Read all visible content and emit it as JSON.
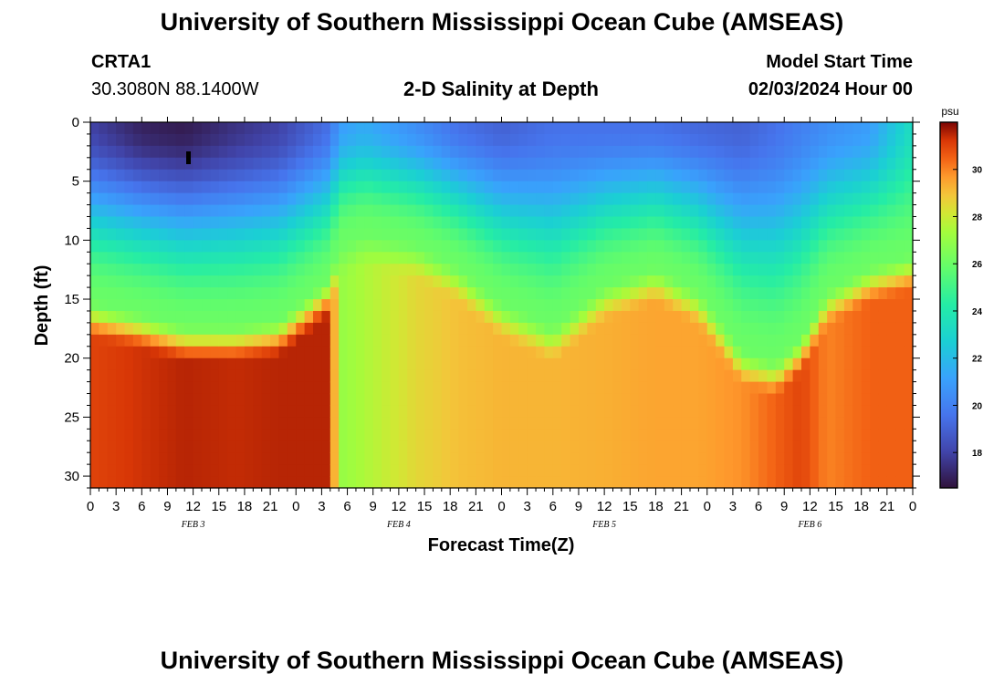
{
  "titles": {
    "top": "University of Southern Mississippi Ocean Cube (AMSEAS)",
    "bottom": "University of Southern Mississippi Ocean Cube (AMSEAS)"
  },
  "station": {
    "id": "CRTA1",
    "coords": "30.3080N  88.1400W"
  },
  "model": {
    "label": "Model Start Time",
    "value": "02/03/2024 Hour 00"
  },
  "chart_data": {
    "type": "heatmap",
    "title": "2-D Salinity at Depth",
    "xlabel": "Forecast Time(Z)",
    "ylabel": "Depth (ft)",
    "xlim": [
      0,
      96
    ],
    "ylim": [
      0,
      31
    ],
    "y_ticks": [
      0,
      5,
      10,
      15,
      20,
      25,
      30
    ],
    "x_tick_labels": [
      "0",
      "3",
      "6",
      "9",
      "12",
      "15",
      "18",
      "21",
      "0",
      "3",
      "6",
      "9",
      "12",
      "15",
      "18",
      "21",
      "0",
      "3",
      "6",
      "9",
      "12",
      "15",
      "18",
      "21",
      "0",
      "3",
      "6",
      "9",
      "12",
      "15",
      "18",
      "21",
      "0"
    ],
    "date_labels": [
      {
        "label": "FEB 3",
        "hour": 12
      },
      {
        "label": "FEB 4",
        "hour": 36
      },
      {
        "label": "FEB 5",
        "hour": 60
      },
      {
        "label": "FEB 6",
        "hour": 84
      }
    ],
    "colorbar": {
      "unit": "psu",
      "min": 16.5,
      "max": 32,
      "ticks": [
        18,
        20,
        22,
        24,
        26,
        28,
        30
      ]
    },
    "profiles": {
      "hours": [
        0,
        6,
        11,
        17,
        22,
        28,
        29,
        32,
        38,
        43,
        48,
        54,
        60,
        66,
        71,
        76,
        80,
        83,
        86,
        91,
        96
      ],
      "halocline_depth_ft": [
        15,
        16,
        17,
        17,
        16.5,
        13,
        10,
        9,
        10,
        12,
        15,
        17,
        13.5,
        12,
        14,
        19,
        20,
        18,
        14,
        12,
        11
      ],
      "surface_salinity_psu": [
        18,
        17,
        16.8,
        17.5,
        18,
        19.5,
        21,
        21.5,
        20.5,
        19.5,
        19,
        19.5,
        19.5,
        19.5,
        19.2,
        19,
        19.5,
        20,
        20.5,
        21,
        23.5
      ],
      "deep_salinity_psu": [
        31,
        31.3,
        31.5,
        31.4,
        31.5,
        31.5,
        27,
        27.5,
        28.5,
        29,
        29.2,
        29.2,
        29.3,
        29.5,
        29.5,
        29.8,
        30.5,
        31,
        30,
        30.5,
        30.5
      ],
      "halocline_salinity_psu": 26
    }
  }
}
